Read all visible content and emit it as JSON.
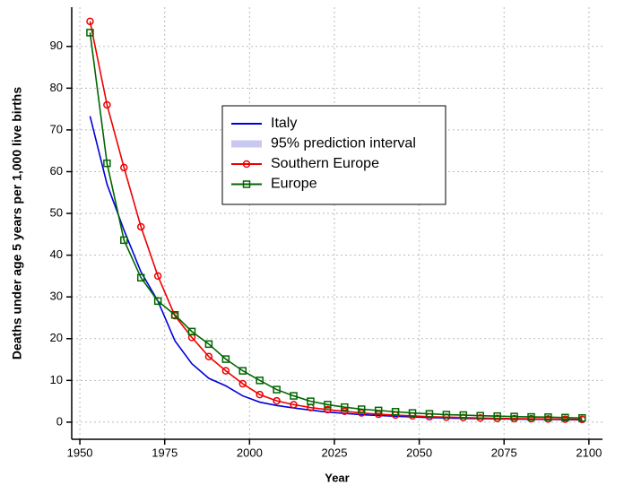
{
  "chart_data": {
    "type": "line",
    "x_label": "Year",
    "y_label": "Deaths under age 5 years per 1,000 live births",
    "x": [
      1953,
      1958,
      1963,
      1968,
      1973,
      1978,
      1983,
      1988,
      1993,
      1998,
      2003,
      2008,
      2013,
      2018,
      2023,
      2028,
      2033,
      2038,
      2043,
      2048,
      2053,
      2058,
      2063,
      2068,
      2073,
      2078,
      2083,
      2088,
      2093,
      2098
    ],
    "series": [
      {
        "name": "Italy",
        "color": "#0000dd",
        "marker": "none",
        "values": [
          73.3,
          57,
          46,
          36,
          29,
          19.5,
          14,
          10.5,
          8.7,
          6.3,
          4.8,
          4,
          3.4,
          2.9,
          2.4,
          2.1,
          1.8,
          1.6,
          1.4,
          1.25,
          1.1,
          1.0,
          0.9,
          0.85,
          0.8,
          0.75,
          0.7,
          0.65,
          0.6,
          0.55
        ]
      },
      {
        "name": "Southern Europe",
        "color": "#ee0000",
        "marker": "circle",
        "values": [
          96,
          76,
          61,
          46.8,
          35,
          25.5,
          20.3,
          15.7,
          12.3,
          9.2,
          6.6,
          5.1,
          4.2,
          3.5,
          3.0,
          2.6,
          2.2,
          1.9,
          1.7,
          1.5,
          1.3,
          1.2,
          1.1,
          1.0,
          0.9,
          0.85,
          0.8,
          0.75,
          0.7,
          0.65
        ]
      },
      {
        "name": "Europe",
        "color": "#006600",
        "marker": "square",
        "values": [
          93.3,
          62,
          43.6,
          34.6,
          29,
          25.7,
          21.7,
          18.7,
          15.1,
          12.3,
          10,
          7.8,
          6.3,
          5,
          4.2,
          3.6,
          3.1,
          2.8,
          2.5,
          2.2,
          2.0,
          1.8,
          1.7,
          1.55,
          1.45,
          1.35,
          1.25,
          1.2,
          1.1,
          1.0
        ]
      }
    ],
    "interval": {
      "name": "95% prediction interval",
      "color": "#c8c8f0"
    },
    "xlim": [
      1947.6,
      2104
    ],
    "ylim": [
      -4.1,
      99.4
    ],
    "xticks": [
      1950,
      1975,
      2000,
      2025,
      2050,
      2075,
      2100
    ],
    "yticks": [
      0,
      10,
      20,
      30,
      40,
      50,
      60,
      70,
      80,
      90
    ],
    "grid": true
  }
}
